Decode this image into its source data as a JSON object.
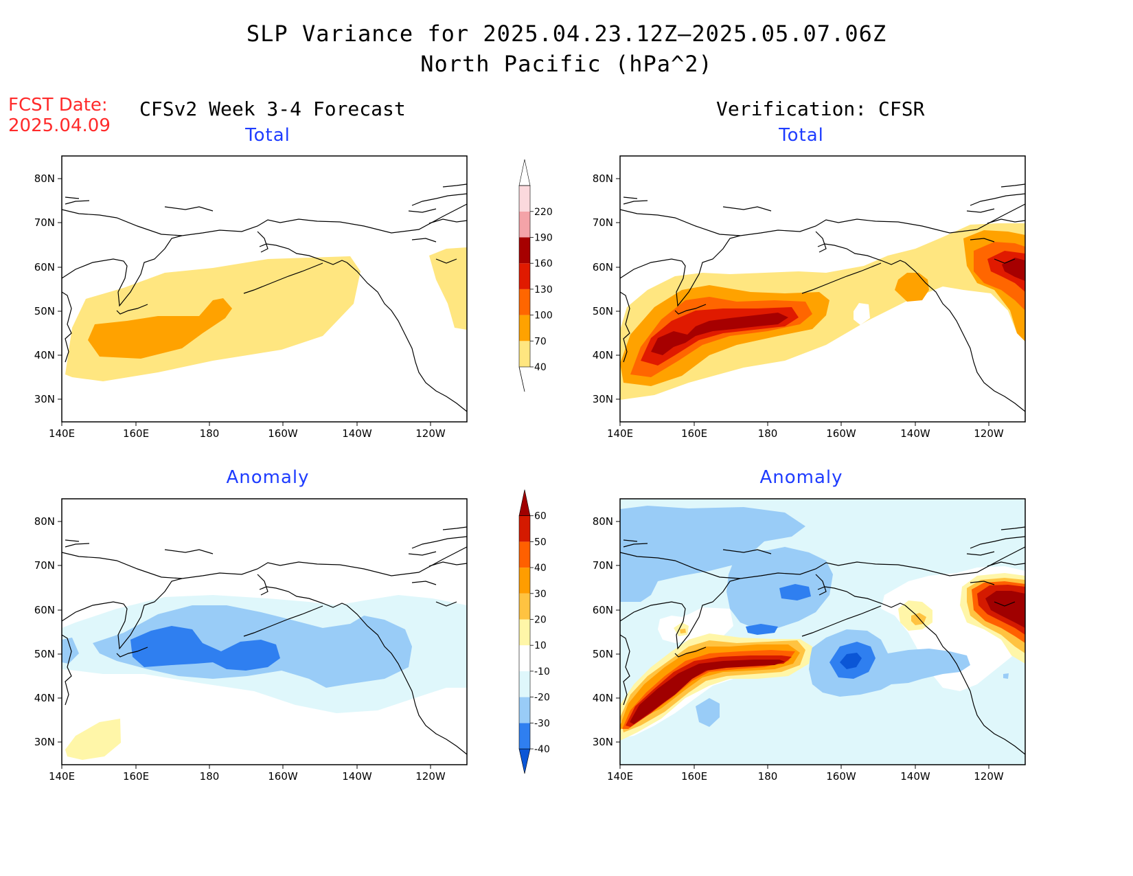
{
  "header": {
    "title": "SLP Variance for 2025.04.23.12Z—2025.05.07.06Z",
    "subtitle": "North Pacific (hPa^2)",
    "fcst_label": "FCST Date:",
    "fcst_date": "2025.04.09",
    "left_column": "CFSv2 Week 3-4 Forecast",
    "right_column": "Verification: CFSR"
  },
  "panels": {
    "fc_total": {
      "title": "Total"
    },
    "ve_total": {
      "title": "Total"
    },
    "fc_anom": {
      "title": "Anomaly"
    },
    "ve_anom": {
      "title": "Anomaly"
    }
  },
  "axes": {
    "lon_ticks": [
      "140E",
      "160E",
      "180",
      "160W",
      "140W",
      "120W"
    ],
    "lat_ticks": [
      "80N",
      "70N",
      "60N",
      "50N",
      "40N",
      "30N"
    ]
  },
  "colorbars": {
    "total": {
      "levels": [
        "40",
        "70",
        "100",
        "130",
        "160",
        "190",
        "220"
      ],
      "colors": [
        "#ffe680",
        "#ffa200",
        "#ff6600",
        "#e01a00",
        "#a60000",
        "#f4a3a8",
        "#fbd9dd",
        "#ffffff"
      ]
    },
    "anomaly": {
      "levels": [
        "-40",
        "-30",
        "-20",
        "-10",
        "10",
        "20",
        "30",
        "40",
        "50",
        "60"
      ],
      "colors": [
        "#0b56d6",
        "#2f7ff0",
        "#99ccf7",
        "#dff7fb",
        "#ffffff",
        "#fff6a8",
        "#ffc341",
        "#ff9d00",
        "#ff6000",
        "#d41a00",
        "#a00000"
      ]
    }
  }
}
